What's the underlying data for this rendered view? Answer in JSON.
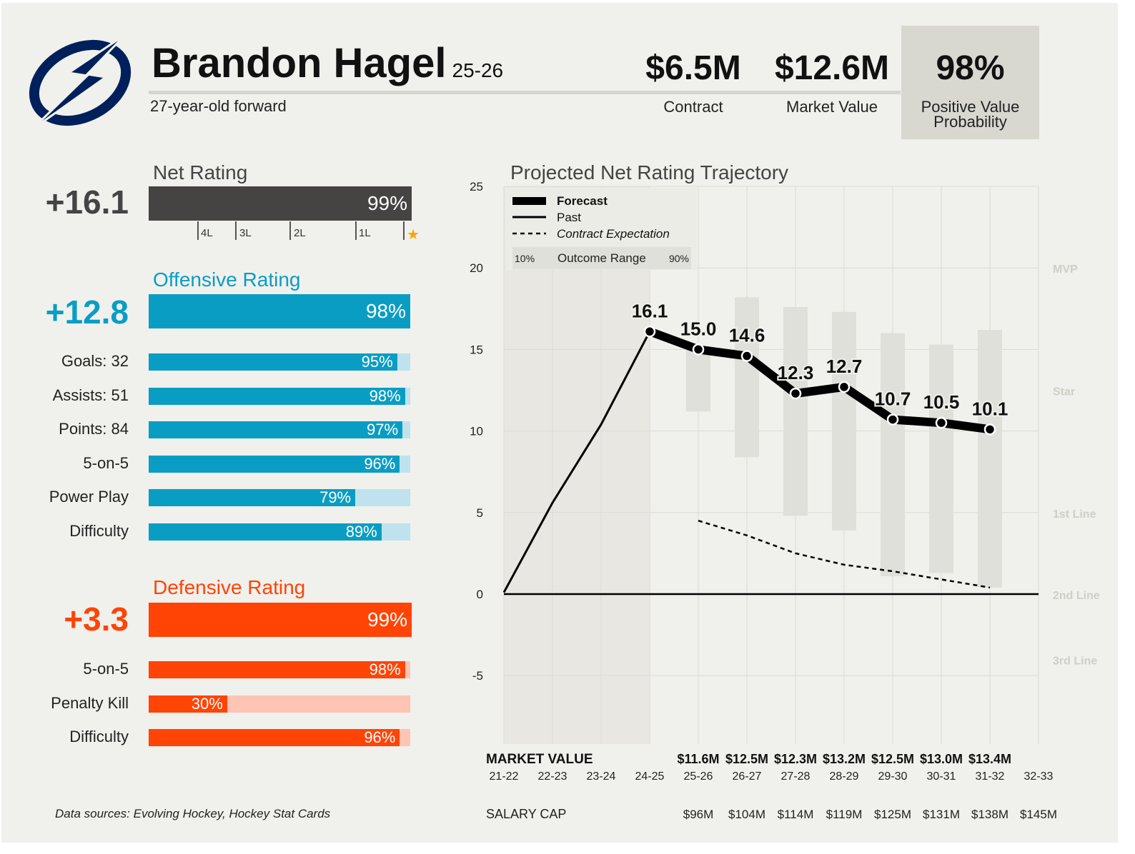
{
  "header": {
    "player": "Brandon Hagel",
    "season": "25-26",
    "description": "27-year-old forward",
    "contract": {
      "value": "$6.5M",
      "label": "Contract"
    },
    "market_value": {
      "value": "$12.6M",
      "label": "Market Value"
    },
    "positive_value_probability": {
      "value": "98%",
      "label_line1": "Positive Value",
      "label_line2": "Probability"
    },
    "logo": "lightning-bolt-logo",
    "logo_color": "#00205b"
  },
  "net": {
    "title": "Net Rating",
    "value": "+16.1",
    "pct": 99,
    "pct_label": "99%",
    "color": "#464442",
    "ticks": [
      "4L",
      "3L",
      "2L",
      "1L"
    ],
    "star_icon": "star-icon",
    "star_color": "#f5a800"
  },
  "offense": {
    "title": "Offensive Rating",
    "value": "+12.8",
    "pct": 98,
    "pct_label": "98%",
    "color": "#0a9dc4",
    "light": "#bfe3ee",
    "rows": [
      {
        "label": "Goals: 32",
        "pct": 95,
        "pct_label": "95%"
      },
      {
        "label": "Assists: 51",
        "pct": 98,
        "pct_label": "98%"
      },
      {
        "label": "Points: 84",
        "pct": 97,
        "pct_label": "97%"
      },
      {
        "label": "5-on-5",
        "pct": 96,
        "pct_label": "96%"
      },
      {
        "label": "Power Play",
        "pct": 79,
        "pct_label": "79%"
      },
      {
        "label": "Difficulty",
        "pct": 89,
        "pct_label": "89%"
      }
    ]
  },
  "defense": {
    "title": "Defensive Rating",
    "value": "+3.3",
    "pct": 99,
    "pct_label": "99%",
    "color": "#ff4405",
    "light": "#ffc4b4",
    "rows": [
      {
        "label": "5-on-5",
        "pct": 98,
        "pct_label": "98%"
      },
      {
        "label": "Penalty Kill",
        "pct": 30,
        "pct_label": "30%"
      },
      {
        "label": "Difficulty",
        "pct": 96,
        "pct_label": "96%"
      }
    ]
  },
  "footer": {
    "sources": "Data sources: Evolving Hockey, Hockey Stat Cards"
  },
  "chart_data": {
    "type": "line",
    "title": "Projected Net Rating Trajectory",
    "categories": [
      "21-22",
      "22-23",
      "23-24",
      "24-25",
      "25-26",
      "26-27",
      "27-28",
      "28-29",
      "29-30",
      "30-31",
      "31-32",
      "32-33"
    ],
    "ylim": [
      -9,
      25
    ],
    "yticks": [
      25,
      20,
      15,
      10,
      5,
      0,
      -5
    ],
    "grid": true,
    "legend": {
      "placement": "top-left",
      "forecast": "Forecast",
      "past": "Past",
      "contract": "Contract Expectation",
      "range": "Outcome Range",
      "range_low": "10%",
      "range_high": "90%"
    },
    "past": [
      0.1,
      5.6,
      10.4,
      16.1
    ],
    "forecast": [
      16.1,
      15.0,
      14.6,
      12.3,
      12.7,
      10.7,
      10.5,
      10.1
    ],
    "forecast_labels": [
      "16.1",
      "15.0",
      "14.6",
      "12.3",
      "12.7",
      "10.7",
      "10.5",
      "10.1"
    ],
    "outcome_range": [
      [
        11.2,
        15.2
      ],
      [
        8.4,
        18.2
      ],
      [
        4.8,
        17.6
      ],
      [
        3.9,
        17.3
      ],
      [
        1.1,
        16.0
      ],
      [
        1.3,
        15.3
      ],
      [
        0.4,
        16.2
      ]
    ],
    "contract_expectation": [
      4.5,
      3.6,
      2.5,
      1.8,
      1.4,
      0.9,
      0.4
    ],
    "tier_labels": [
      {
        "label": "MVP",
        "y": 20
      },
      {
        "label": "Star",
        "y": 12.5
      },
      {
        "label": "1st Line",
        "y": 5
      },
      {
        "label": "2nd Line",
        "y": 0
      },
      {
        "label": "3rd Line",
        "y": -4
      }
    ],
    "market_value_label": "MARKET VALUE",
    "market_values": [
      "",
      "",
      "",
      "",
      "$11.6M",
      "$12.5M",
      "$12.3M",
      "$13.2M",
      "$12.5M",
      "$13.0M",
      "$13.4M",
      ""
    ],
    "salary_cap_label": "SALARY CAP",
    "salary_caps": [
      "",
      "",
      "",
      "",
      "$96M",
      "$104M",
      "$114M",
      "$119M",
      "$125M",
      "$131M",
      "$138M",
      "$145M"
    ]
  }
}
